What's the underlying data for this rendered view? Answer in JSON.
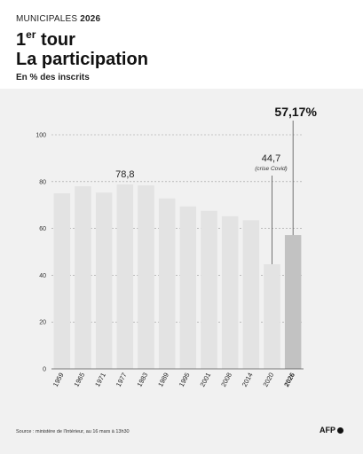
{
  "header": {
    "kicker_prefix": "MUNICIPALES",
    "kicker_year": "2026",
    "title_number": "1",
    "title_sup": "er",
    "title_word": "tour",
    "title_line2": "La participation",
    "subtitle": "En % des inscrits"
  },
  "footer": {
    "source": "Source : ministère de l'Intérieur, au 16 mars à 13h30",
    "logo": "AFP"
  },
  "colors": {
    "bar": "#e3e3e3",
    "bar_highlight": "#c2c2c2",
    "panel": "#f1f1f1",
    "grid": "#9a9a9a",
    "text": "#111111"
  },
  "chart_data": {
    "type": "bar",
    "categories": [
      "1959",
      "1965",
      "1971",
      "1977",
      "1983",
      "1989",
      "1995",
      "2001",
      "2008",
      "2014",
      "2020",
      "2026"
    ],
    "values": [
      75,
      78,
      75.3,
      78.8,
      78.4,
      72.8,
      69.4,
      67.5,
      65.2,
      63.5,
      44.7,
      57.17
    ],
    "ylim": [
      0,
      100
    ],
    "yticks": [
      "0",
      "20",
      "40",
      "60",
      "80",
      "100"
    ],
    "grid": true,
    "highlight_category": "2026",
    "annotations": [
      {
        "category": "1977",
        "label": "78,8"
      },
      {
        "category": "2020",
        "label": "44,7",
        "note": "(crise Covid)"
      },
      {
        "category": "2026",
        "label": "57,17%"
      }
    ]
  }
}
